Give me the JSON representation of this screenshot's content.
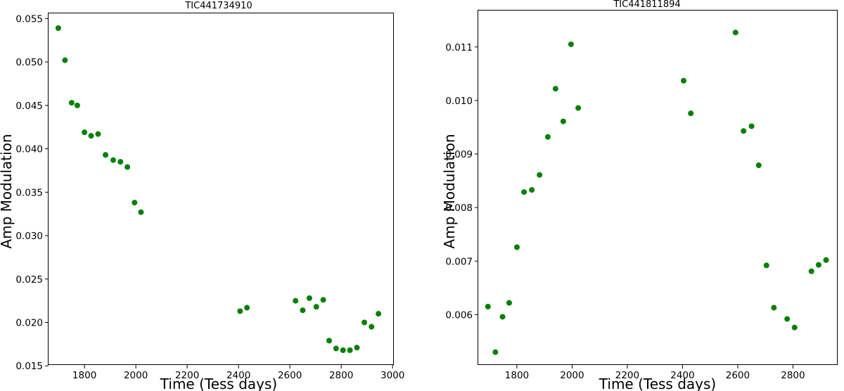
{
  "chart_data": [
    {
      "type": "scatter",
      "title": "TIC441734910",
      "xlabel": "Time (Tess days)",
      "ylabel": "Amp Modulation",
      "xlim": [
        1660,
        3005
      ],
      "ylim": [
        0.0151,
        0.0556
      ],
      "xticks": [
        1800,
        2000,
        2200,
        2400,
        2600,
        2800,
        3000
      ],
      "yticks": [
        0.015,
        0.02,
        0.025,
        0.03,
        0.035,
        0.04,
        0.045,
        0.05,
        0.055
      ],
      "ytick_labels": [
        "0.015",
        "0.020",
        "0.025",
        "0.030",
        "0.035",
        "0.040",
        "0.045",
        "0.050",
        "0.055"
      ],
      "color": "#008000",
      "grid": false,
      "x": [
        1698,
        1724,
        1750,
        1772,
        1800,
        1826,
        1853,
        1882,
        1912,
        1940,
        1967,
        1995,
        2020,
        2406,
        2433,
        2622,
        2650,
        2676,
        2703,
        2730,
        2753,
        2780,
        2807,
        2834,
        2861,
        2890,
        2918,
        2945
      ],
      "y": [
        0.0539,
        0.0502,
        0.0453,
        0.045,
        0.0419,
        0.0415,
        0.0417,
        0.0393,
        0.0387,
        0.0385,
        0.0379,
        0.0338,
        0.0327,
        0.0213,
        0.0217,
        0.0225,
        0.0214,
        0.0228,
        0.0218,
        0.0226,
        0.0179,
        0.017,
        0.0168,
        0.0168,
        0.0171,
        0.02,
        0.0195,
        0.021
      ]
    },
    {
      "type": "scatter",
      "title": "TIC441811894",
      "xlabel": "Time (Tess days)",
      "ylabel": "Amp Modulation",
      "xlim": [
        1660,
        2962
      ],
      "ylim": [
        0.00506,
        0.01168
      ],
      "xticks": [
        1800,
        2000,
        2200,
        2400,
        2600,
        2800
      ],
      "yticks": [
        0.006,
        0.007,
        0.008,
        0.009,
        0.01,
        0.011
      ],
      "ytick_labels": [
        "0.006",
        "0.007",
        "0.008",
        "0.009",
        "0.010",
        "0.011"
      ],
      "color": "#008000",
      "grid": false,
      "x": [
        1695,
        1722,
        1748,
        1772,
        1800,
        1826,
        1854,
        1882,
        1912,
        1940,
        1968,
        1996,
        2022,
        2404,
        2430,
        2592,
        2621,
        2650,
        2676,
        2704,
        2731,
        2779,
        2806,
        2867,
        2893,
        2920
      ],
      "y": [
        0.00615,
        0.0053,
        0.00596,
        0.00622,
        0.00726,
        0.00829,
        0.00833,
        0.00861,
        0.00932,
        0.01022,
        0.00961,
        0.01105,
        0.00986,
        0.01037,
        0.00976,
        0.01127,
        0.00943,
        0.00952,
        0.00879,
        0.00692,
        0.00613,
        0.00592,
        0.00576,
        0.00681,
        0.00693,
        0.00702
      ]
    }
  ]
}
